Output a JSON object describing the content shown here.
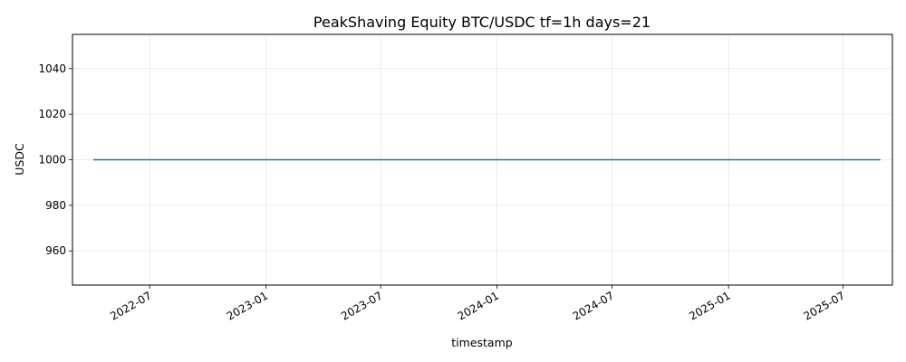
{
  "chart_data": {
    "type": "line",
    "title": "PeakShaving Equity BTC/USDC tf=1h days=21",
    "xlabel": "timestamp",
    "ylabel": "USDC",
    "x_tick_labels": [
      "2022-07",
      "2023-01",
      "2023-07",
      "2024-01",
      "2024-07",
      "2025-01",
      "2025-07"
    ],
    "x_tick_dates": [
      "2022-07-01",
      "2023-01-01",
      "2023-07-01",
      "2024-01-01",
      "2024-07-01",
      "2025-01-01",
      "2025-07-01"
    ],
    "y_ticks": [
      960,
      980,
      1000,
      1020,
      1040
    ],
    "xlim": [
      "2022-03-01",
      "2025-09-17"
    ],
    "ylim": [
      945,
      1055
    ],
    "grid": true,
    "series": [
      {
        "color": "#1f77b4",
        "x": [
          "2022-04-03",
          "2025-08-29"
        ],
        "y": [
          1000,
          1000
        ]
      }
    ]
  }
}
